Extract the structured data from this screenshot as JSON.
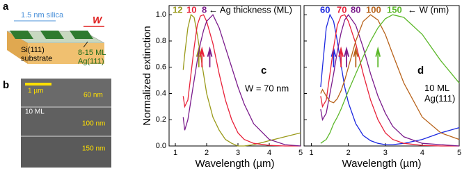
{
  "figure": {
    "panel_a": {
      "label": "a",
      "silica": "1.5 nm silica",
      "width": "W",
      "substrate": "Si(111)\nsubstrate",
      "film": "8-15 ML\nAg(111)"
    },
    "panel_b": {
      "label": "b",
      "scale": "1 µm",
      "top_width": "60 nm",
      "thickness": "10 ML",
      "mid_width": "100 nm",
      "bottom_width": "150 nm"
    }
  },
  "chart_data": [
    {
      "type": "line",
      "panel_label": "c",
      "note": "W = 70 nm",
      "legend_title": "← Ag thickness (ML)",
      "xlabel": "Wavelength (µm)",
      "ylabel": "Normalized extinction",
      "x": [
        1.25,
        1.3,
        1.4,
        1.5,
        1.6,
        1.7,
        1.8,
        1.9,
        2.0,
        2.2,
        2.4,
        2.6,
        2.8,
        3.0,
        3.2,
        3.5,
        4.0,
        4.5,
        5.0
      ],
      "series": [
        {
          "name": "12",
          "color": "#9a9a1a",
          "values": [
            0.58,
            0.7,
            0.9,
            1.0,
            0.98,
            0.85,
            0.7,
            0.55,
            0.4,
            0.22,
            0.12,
            0.05,
            0.02,
            0.0,
            0.0,
            0.01,
            0.04,
            0.07,
            0.1
          ]
        },
        {
          "name": "10",
          "color": "#e8223a",
          "values": [
            0.38,
            0.3,
            0.35,
            0.55,
            0.75,
            0.92,
            0.99,
            1.0,
            0.95,
            0.78,
            0.55,
            0.35,
            0.2,
            0.1,
            0.05,
            0.02,
            0.005,
            0.0,
            0.0
          ]
        },
        {
          "name": "8",
          "color": "#7b1c8c",
          "values": [
            0.22,
            0.12,
            0.2,
            0.35,
            0.5,
            0.65,
            0.78,
            0.88,
            0.95,
            1.0,
            0.9,
            0.75,
            0.6,
            0.45,
            0.32,
            0.17,
            0.05,
            0.01,
            0.0
          ]
        }
      ],
      "xlim": [
        0.8,
        5
      ],
      "xticks": [
        1,
        2,
        3,
        4,
        5
      ],
      "ylim": [
        0,
        1.07
      ],
      "yticks": [
        {
          "value": 0,
          "label": "0.0"
        },
        0.2,
        0.4,
        0.6,
        0.8,
        {
          "value": 1,
          "label": "1.0"
        }
      ]
    },
    {
      "type": "line",
      "panel_label": "d",
      "note": "10 ML\nAg(111)",
      "legend_title": "← W (nm)",
      "xlabel": "Wavelength (µm)",
      "x": [
        1.25,
        1.3,
        1.4,
        1.5,
        1.6,
        1.7,
        1.8,
        1.9,
        2.0,
        2.2,
        2.4,
        2.6,
        2.8,
        3.0,
        3.2,
        3.5,
        4.0,
        4.5,
        5.0
      ],
      "series": [
        {
          "name": "60",
          "color": "#1c28e0",
          "values": [
            0.45,
            0.6,
            0.9,
            1.0,
            0.95,
            0.8,
            0.62,
            0.45,
            0.33,
            0.17,
            0.08,
            0.04,
            0.02,
            0.01,
            0.01,
            0.02,
            0.05,
            0.1,
            0.14
          ]
        },
        {
          "name": "70",
          "color": "#e8223a",
          "values": [
            0.38,
            0.3,
            0.35,
            0.55,
            0.75,
            0.92,
            0.99,
            1.0,
            0.95,
            0.78,
            0.55,
            0.35,
            0.2,
            0.1,
            0.05,
            0.02,
            0.005,
            0.0,
            0.0
          ]
        },
        {
          "name": "80",
          "color": "#7b1c8c",
          "values": [
            0.28,
            0.2,
            0.25,
            0.4,
            0.55,
            0.72,
            0.86,
            0.96,
            1.0,
            0.92,
            0.75,
            0.55,
            0.38,
            0.25,
            0.15,
            0.07,
            0.02,
            0.01,
            0.0
          ]
        },
        {
          "name": "100",
          "color": "#b8621a",
          "values": [
            0.4,
            0.43,
            0.38,
            0.34,
            0.33,
            0.36,
            0.42,
            0.5,
            0.6,
            0.8,
            0.95,
            1.0,
            0.96,
            0.85,
            0.7,
            0.48,
            0.22,
            0.1,
            0.05
          ]
        },
        {
          "name": "150",
          "color": "#5cb82a",
          "values": [
            0.02,
            0.03,
            0.05,
            0.1,
            0.17,
            0.22,
            0.28,
            0.35,
            0.42,
            0.55,
            0.68,
            0.8,
            0.9,
            0.97,
            1.0,
            0.98,
            0.85,
            0.65,
            0.48
          ]
        }
      ],
      "xlim": [
        0.8,
        5
      ],
      "xticks": [
        1,
        2,
        3,
        4,
        5
      ],
      "ylim": [
        0,
        1.07
      ],
      "yticks": [
        0,
        0.2,
        0.4,
        0.6,
        0.8,
        1
      ]
    }
  ]
}
